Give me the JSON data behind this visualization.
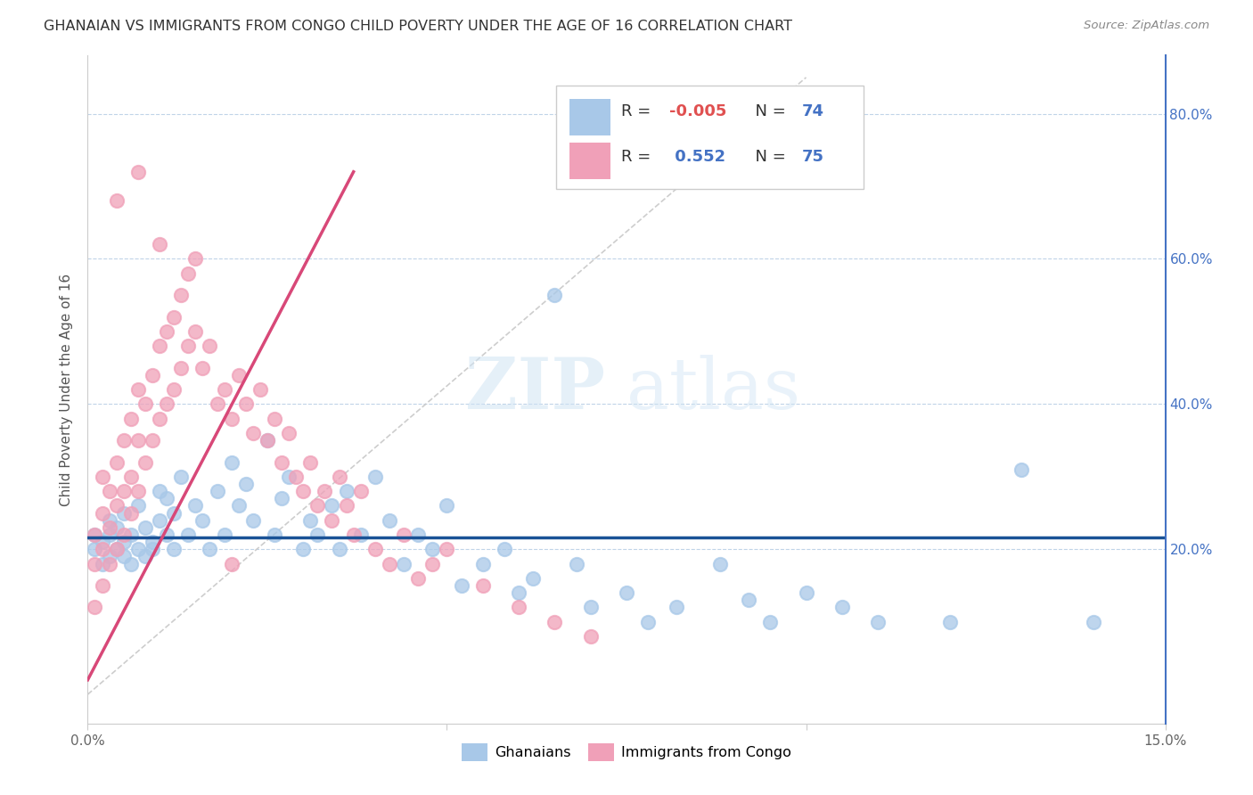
{
  "title": "GHANAIAN VS IMMIGRANTS FROM CONGO CHILD POVERTY UNDER THE AGE OF 16 CORRELATION CHART",
  "source": "Source: ZipAtlas.com",
  "ylabel": "Child Poverty Under the Age of 16",
  "xlim": [
    0.0,
    0.15
  ],
  "ylim": [
    -0.04,
    0.88
  ],
  "color_ghanaian": "#a8c8e8",
  "color_congo": "#f0a0b8",
  "color_ghanaian_line": "#1a5296",
  "color_congo_line": "#d84878",
  "color_diag": "#c8c8c8",
  "ghanaian_x": [
    0.001,
    0.001,
    0.002,
    0.002,
    0.003,
    0.003,
    0.003,
    0.004,
    0.004,
    0.005,
    0.005,
    0.005,
    0.006,
    0.006,
    0.007,
    0.007,
    0.008,
    0.008,
    0.009,
    0.009,
    0.01,
    0.01,
    0.011,
    0.011,
    0.012,
    0.012,
    0.013,
    0.014,
    0.015,
    0.016,
    0.017,
    0.018,
    0.019,
    0.02,
    0.021,
    0.022,
    0.023,
    0.025,
    0.026,
    0.027,
    0.028,
    0.03,
    0.031,
    0.032,
    0.034,
    0.035,
    0.036,
    0.038,
    0.04,
    0.042,
    0.044,
    0.046,
    0.048,
    0.05,
    0.052,
    0.055,
    0.058,
    0.06,
    0.062,
    0.065,
    0.068,
    0.07,
    0.075,
    0.078,
    0.082,
    0.088,
    0.092,
    0.095,
    0.1,
    0.105,
    0.11,
    0.12,
    0.13,
    0.14
  ],
  "ghanaian_y": [
    0.2,
    0.22,
    0.18,
    0.21,
    0.19,
    0.22,
    0.24,
    0.2,
    0.23,
    0.19,
    0.21,
    0.25,
    0.18,
    0.22,
    0.2,
    0.26,
    0.19,
    0.23,
    0.21,
    0.2,
    0.24,
    0.28,
    0.22,
    0.27,
    0.2,
    0.25,
    0.3,
    0.22,
    0.26,
    0.24,
    0.2,
    0.28,
    0.22,
    0.32,
    0.26,
    0.29,
    0.24,
    0.35,
    0.22,
    0.27,
    0.3,
    0.2,
    0.24,
    0.22,
    0.26,
    0.2,
    0.28,
    0.22,
    0.3,
    0.24,
    0.18,
    0.22,
    0.2,
    0.26,
    0.15,
    0.18,
    0.2,
    0.14,
    0.16,
    0.55,
    0.18,
    0.12,
    0.14,
    0.1,
    0.12,
    0.18,
    0.13,
    0.1,
    0.14,
    0.12,
    0.1,
    0.1,
    0.31,
    0.1
  ],
  "congo_x": [
    0.001,
    0.001,
    0.001,
    0.002,
    0.002,
    0.002,
    0.002,
    0.003,
    0.003,
    0.003,
    0.004,
    0.004,
    0.004,
    0.005,
    0.005,
    0.005,
    0.006,
    0.006,
    0.006,
    0.007,
    0.007,
    0.007,
    0.008,
    0.008,
    0.009,
    0.009,
    0.01,
    0.01,
    0.011,
    0.011,
    0.012,
    0.012,
    0.013,
    0.013,
    0.014,
    0.014,
    0.015,
    0.016,
    0.017,
    0.018,
    0.019,
    0.02,
    0.021,
    0.022,
    0.023,
    0.024,
    0.025,
    0.026,
    0.027,
    0.028,
    0.029,
    0.03,
    0.031,
    0.032,
    0.033,
    0.034,
    0.035,
    0.036,
    0.037,
    0.038,
    0.04,
    0.042,
    0.044,
    0.046,
    0.048,
    0.05,
    0.055,
    0.06,
    0.065,
    0.07,
    0.004,
    0.007,
    0.01,
    0.015,
    0.02
  ],
  "congo_y": [
    0.12,
    0.18,
    0.22,
    0.15,
    0.2,
    0.25,
    0.3,
    0.18,
    0.23,
    0.28,
    0.2,
    0.26,
    0.32,
    0.22,
    0.28,
    0.35,
    0.25,
    0.3,
    0.38,
    0.28,
    0.35,
    0.42,
    0.32,
    0.4,
    0.35,
    0.44,
    0.38,
    0.48,
    0.4,
    0.5,
    0.42,
    0.52,
    0.45,
    0.55,
    0.48,
    0.58,
    0.5,
    0.45,
    0.48,
    0.4,
    0.42,
    0.38,
    0.44,
    0.4,
    0.36,
    0.42,
    0.35,
    0.38,
    0.32,
    0.36,
    0.3,
    0.28,
    0.32,
    0.26,
    0.28,
    0.24,
    0.3,
    0.26,
    0.22,
    0.28,
    0.2,
    0.18,
    0.22,
    0.16,
    0.18,
    0.2,
    0.15,
    0.12,
    0.1,
    0.08,
    0.68,
    0.72,
    0.62,
    0.6,
    0.18
  ]
}
